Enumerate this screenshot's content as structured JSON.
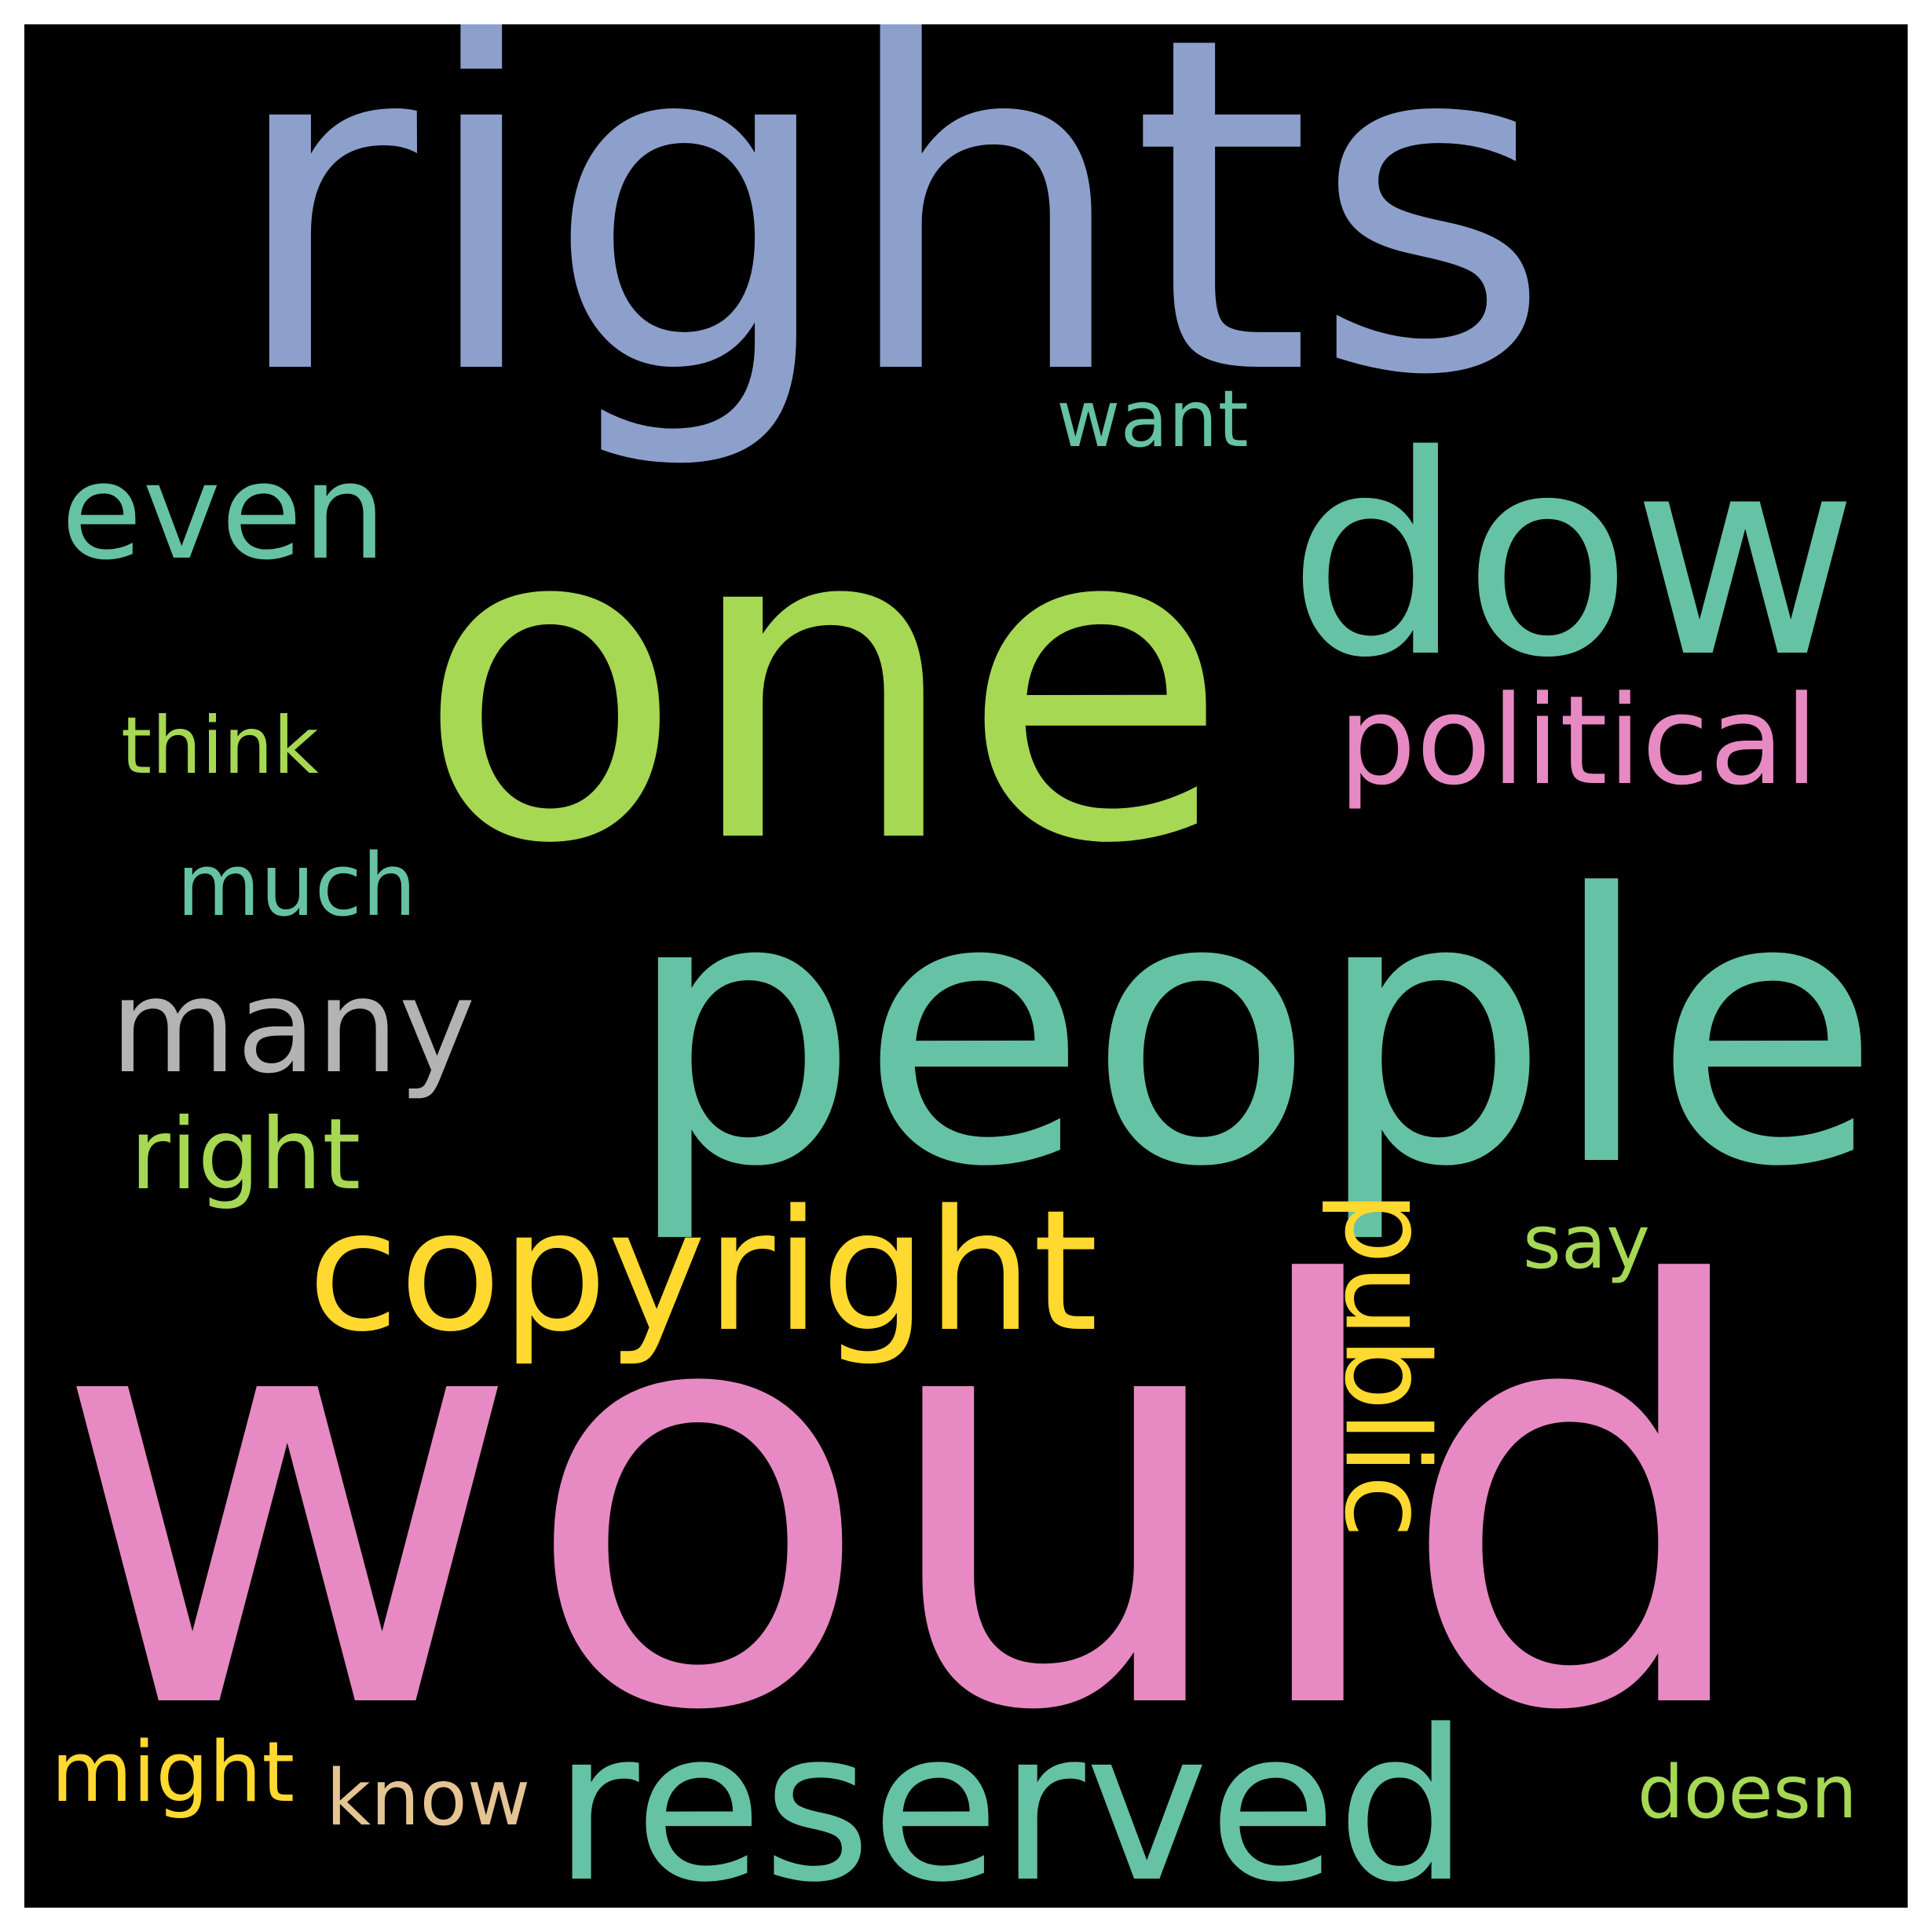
{
  "background_color": "#000000",
  "frame_color": "#ffffff",
  "words": [
    {
      "text": "rights",
      "color": "#8da0cb"
    },
    {
      "text": "one",
      "color": "#a6d854"
    },
    {
      "text": "dow",
      "color": "#66c2a5"
    },
    {
      "text": "even",
      "color": "#66c2a5"
    },
    {
      "text": "want",
      "color": "#66c2a5"
    },
    {
      "text": "political",
      "color": "#e78ac3"
    },
    {
      "text": "think",
      "color": "#a6d854"
    },
    {
      "text": "much",
      "color": "#66c2a5"
    },
    {
      "text": "people",
      "color": "#66c2a5"
    },
    {
      "text": "many",
      "color": "#b3b3b3"
    },
    {
      "text": "right",
      "color": "#a6d854"
    },
    {
      "text": "copyright",
      "color": "#ffd92f"
    },
    {
      "text": "public",
      "color": "#ffd92f"
    },
    {
      "text": "say",
      "color": "#a6d854"
    },
    {
      "text": "would",
      "color": "#e78ac3"
    },
    {
      "text": "might",
      "color": "#ffd92f"
    },
    {
      "text": "know",
      "color": "#e5c494"
    },
    {
      "text": "reserved",
      "color": "#66c2a5"
    },
    {
      "text": "doesn",
      "color": "#a6d854"
    }
  ]
}
